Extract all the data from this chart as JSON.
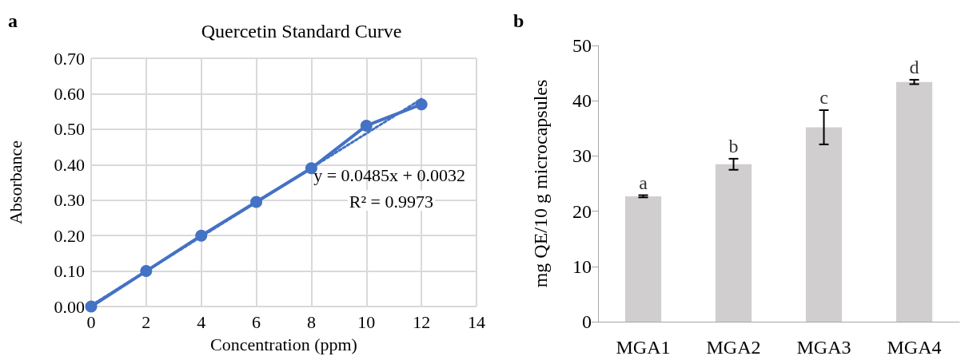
{
  "chart_data": [
    {
      "type": "line",
      "title": "Quercetin Standard Curve",
      "xlabel": "Concentration (ppm)",
      "ylabel": "Absorbance",
      "x": [
        0,
        2,
        4,
        6,
        8,
        10,
        12
      ],
      "series": [
        {
          "color": "#4472c4",
          "values": [
            0.0,
            0.1,
            0.2,
            0.295,
            0.39,
            0.51,
            0.57
          ],
          "marker": "circle",
          "line_style": "solid"
        },
        {
          "type": "line",
          "color": "#4472c4",
          "x": [
            0,
            12
          ],
          "values": [
            0.003,
            0.585
          ],
          "marker": "none",
          "line_style": "dotted"
        }
      ],
      "xlim": [
        0,
        14
      ],
      "xticks": [
        0,
        2,
        4,
        6,
        8,
        10,
        12,
        14
      ],
      "ylim": [
        0,
        0.7
      ],
      "yticks": [
        {
          "value": 0,
          "label": "0.00"
        },
        {
          "value": 0.1,
          "label": "0.10"
        },
        {
          "value": 0.2,
          "label": "0.20"
        },
        {
          "value": 0.3,
          "label": "0.30"
        },
        {
          "value": 0.4,
          "label": "0.40"
        },
        {
          "value": 0.5,
          "label": "0.50"
        },
        {
          "value": 0.6,
          "label": "0.60"
        },
        {
          "value": 0.7,
          "label": "0.70"
        }
      ],
      "grid": true,
      "annotations": [
        "a",
        "y = 0.0485x + 0.0032",
        "R² = 0.9973"
      ]
    },
    {
      "type": "bar",
      "ylabel": "mg QE/10 g microcapsules",
      "categories": [
        "MGA1",
        "MGA2",
        "MGA3",
        "MGA4"
      ],
      "values": [
        22.7,
        28.5,
        35.2,
        43.4
      ],
      "color": "#d0cece",
      "errors": [
        0.2,
        1.0,
        3.1,
        0.4
      ],
      "ylim": [
        0,
        50
      ],
      "yticks": [
        0,
        10,
        20,
        30,
        40,
        50
      ],
      "grid": false,
      "annotations": [
        "b",
        {
          "text": "a",
          "x": "MGA1",
          "y": 22.9
        },
        {
          "text": "b",
          "x": "MGA2",
          "y": 29.5
        },
        {
          "text": "c",
          "x": "MGA3",
          "y": 38.3
        },
        {
          "text": "d",
          "x": "MGA4",
          "y": 43.8
        }
      ]
    }
  ]
}
